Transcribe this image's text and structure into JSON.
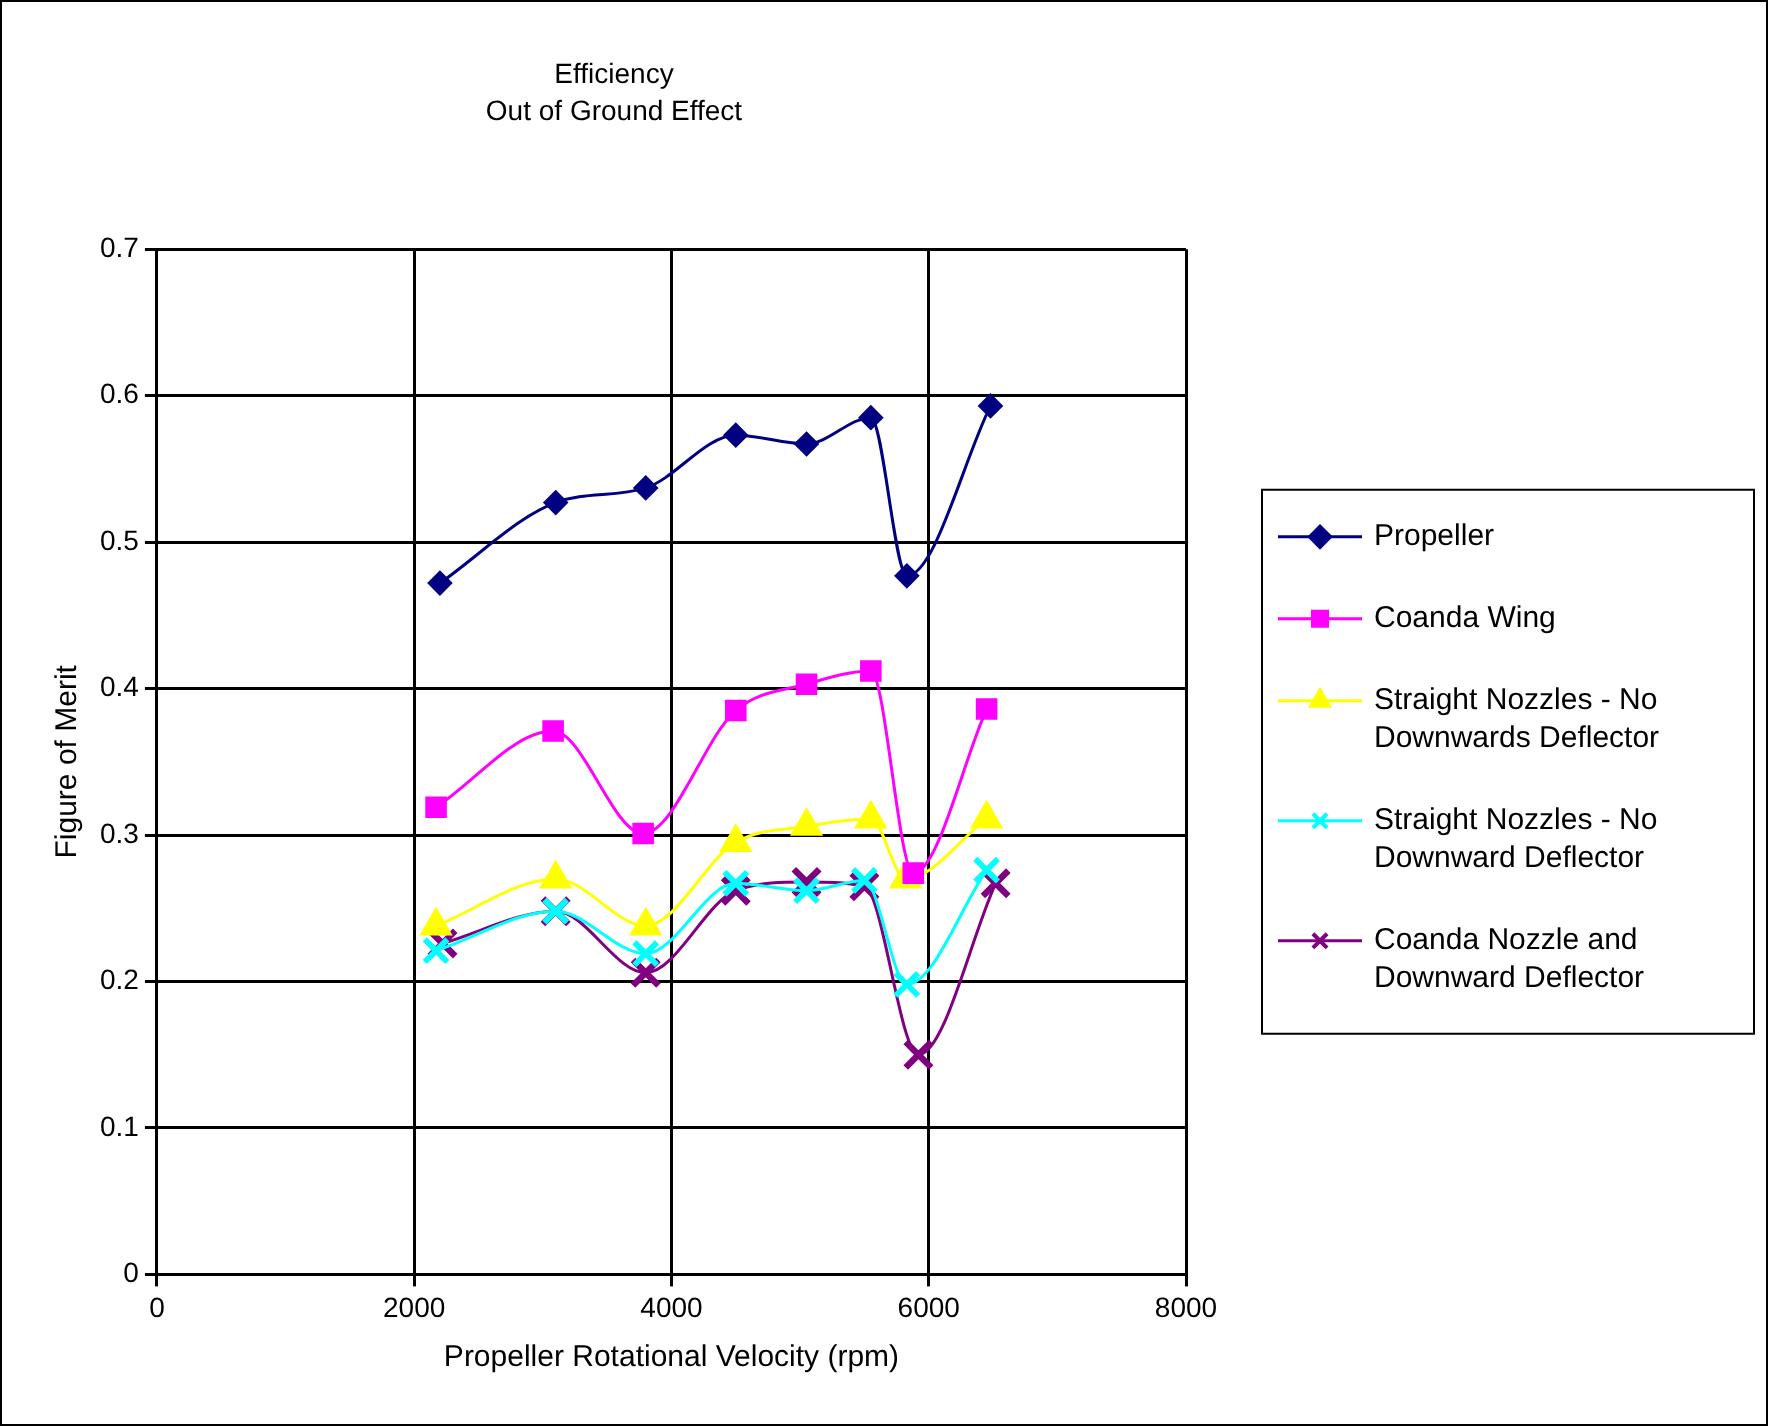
{
  "chart_data": {
    "type": "line",
    "title": "Efficiency",
    "subtitle": "Out of Ground Effect",
    "xlabel": "Propeller Rotational Velocity (rpm)",
    "ylabel": "Figure of Merit",
    "xlim": [
      0,
      8000
    ],
    "xticks": [
      0,
      2000,
      4000,
      6000,
      8000
    ],
    "ylim": [
      0,
      0.7
    ],
    "yticks": [
      0,
      0.1,
      0.2,
      0.3,
      0.4,
      0.5,
      0.6,
      0.7
    ],
    "grid": true,
    "legend": "right",
    "series": [
      {
        "name": "Propeller",
        "color": "#000080",
        "marker": "diamond",
        "x": [
          2200,
          3100,
          3800,
          4500,
          5050,
          5550,
          5830,
          6480
        ],
        "values": [
          0.472,
          0.527,
          0.537,
          0.573,
          0.567,
          0.585,
          0.477,
          0.593
        ]
      },
      {
        "name": "Coanda Wing",
        "color": "#ff00ff",
        "marker": "square",
        "x": [
          2170,
          3080,
          3780,
          4500,
          5050,
          5550,
          5880,
          6450
        ],
        "values": [
          0.319,
          0.371,
          0.301,
          0.385,
          0.403,
          0.412,
          0.274,
          0.386
        ]
      },
      {
        "name": "Straight Nozzles - No Downwards Deflector",
        "color": "#ffff00",
        "marker": "triangle",
        "x": [
          2170,
          3100,
          3800,
          4500,
          5050,
          5550,
          5820,
          6450
        ],
        "values": [
          0.238,
          0.27,
          0.238,
          0.295,
          0.306,
          0.311,
          0.27,
          0.311
        ]
      },
      {
        "name": "Straight Nozzles - No Downward Deflector",
        "color": "#00ffff",
        "marker": "cross",
        "x": [
          2170,
          3100,
          3800,
          4500,
          5050,
          5500,
          5830,
          6450
        ],
        "values": [
          0.221,
          0.248,
          0.219,
          0.267,
          0.262,
          0.269,
          0.198,
          0.276
        ]
      },
      {
        "name": "Coanda Nozzle and Downward Deflector",
        "color": "#800080",
        "marker": "cross",
        "x": [
          2220,
          3100,
          3800,
          4500,
          5050,
          5500,
          5920,
          6520
        ],
        "values": [
          0.226,
          0.248,
          0.206,
          0.262,
          0.268,
          0.265,
          0.15,
          0.267
        ]
      }
    ]
  }
}
